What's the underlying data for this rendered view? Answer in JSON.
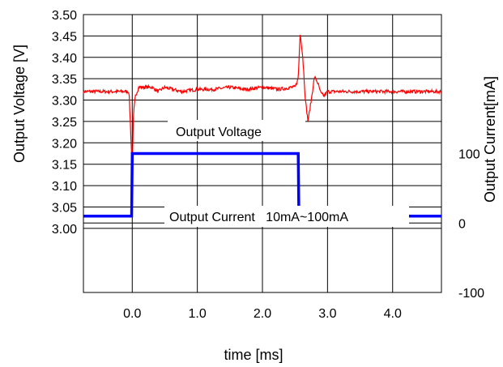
{
  "chart_data": {
    "type": "line",
    "title": "",
    "xlabel": "time [ms]",
    "ylabel": "Output Voltage [V]",
    "y2label": "Output Current[mA]",
    "xlim": [
      -0.75,
      4.75
    ],
    "ylim": [
      2.85,
      3.5
    ],
    "y2lim": [
      -100,
      300
    ],
    "grid": true,
    "x_ticks": [
      0.0,
      1.0,
      2.0,
      3.0,
      4.0
    ],
    "x_tick_labels": [
      "0.0",
      "1.0",
      "2.0",
      "3.0",
      "4.0"
    ],
    "y_ticks": [
      3.5,
      3.45,
      3.4,
      3.35,
      3.3,
      3.25,
      3.2,
      3.15,
      3.1,
      3.05,
      3.0
    ],
    "y_tick_labels": [
      "3.50",
      "3.45",
      "3.40",
      "3.35",
      "3.30",
      "3.25",
      "3.20",
      "3.15",
      "3.10",
      "3.05",
      "3.00"
    ],
    "y2_ticks": [
      100,
      0,
      -100
    ],
    "y2_tick_labels": [
      "100",
      "0",
      "-100"
    ],
    "annotations": {
      "voltage": "Output Voltage",
      "current": "Output Current   10mA~100mA"
    },
    "series": [
      {
        "axis": "left",
        "color": "#ff0000",
        "x": [
          -0.75,
          -0.5,
          -0.25,
          -0.05,
          0.0,
          0.02,
          0.05,
          0.1,
          0.2,
          0.3,
          0.4,
          0.5,
          0.75,
          1.0,
          1.25,
          1.5,
          1.75,
          2.0,
          2.25,
          2.45,
          2.5,
          2.55,
          2.58,
          2.62,
          2.66,
          2.7,
          2.75,
          2.8,
          2.85,
          2.9,
          2.95,
          3.0,
          3.1,
          3.25,
          3.5,
          3.75,
          4.0,
          4.25,
          4.5,
          4.75
        ],
        "y": [
          3.32,
          3.32,
          3.32,
          3.32,
          3.14,
          3.27,
          3.31,
          3.33,
          3.33,
          3.33,
          3.32,
          3.33,
          3.32,
          3.325,
          3.325,
          3.33,
          3.325,
          3.33,
          3.325,
          3.33,
          3.33,
          3.35,
          3.46,
          3.4,
          3.3,
          3.25,
          3.3,
          3.355,
          3.34,
          3.315,
          3.31,
          3.32,
          3.32,
          3.32,
          3.32,
          3.32,
          3.32,
          3.32,
          3.32,
          3.32
        ]
      },
      {
        "axis": "right",
        "color": "#0000ff",
        "x": [
          -0.75,
          -0.01,
          0.0,
          2.55,
          2.56,
          4.75
        ],
        "y": [
          10,
          10,
          100,
          100,
          10,
          10
        ]
      }
    ]
  },
  "colors": {
    "voltage": "#ff0000",
    "current": "#0000ff",
    "grid": "#000000"
  }
}
